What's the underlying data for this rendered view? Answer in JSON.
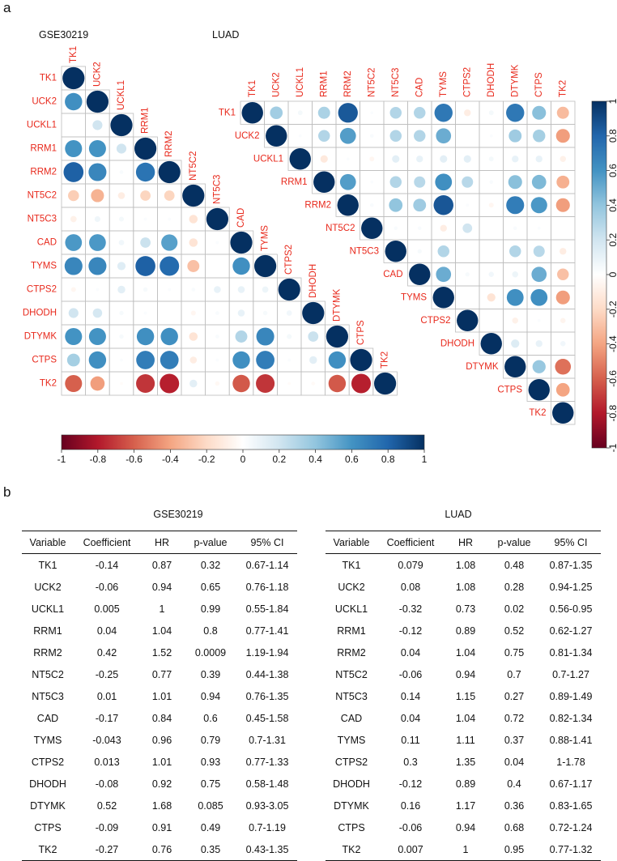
{
  "panel_labels": {
    "a": "a",
    "b": "b"
  },
  "colors": {
    "label_red": "#e8291c",
    "cell_border": "#bdbdbd",
    "negative": "#67001f",
    "zero": "#ffffff",
    "positive": "#053061"
  },
  "chart_data": [
    {
      "type": "heatmap",
      "title": "GSE30219",
      "genes": [
        "TK1",
        "UCK2",
        "UCKL1",
        "RRM1",
        "RRM2",
        "NT5C2",
        "NT5C3",
        "CAD",
        "TYMS",
        "CTPS2",
        "DHODH",
        "DTYMK",
        "CTPS",
        "TK2"
      ],
      "lower_triangle": [
        [
          1
        ],
        [
          0.62,
          1
        ],
        [
          0.0,
          0.2,
          1
        ],
        [
          0.6,
          0.6,
          0.2,
          1
        ],
        [
          0.82,
          0.66,
          0.03,
          0.74,
          1
        ],
        [
          -0.25,
          -0.35,
          -0.1,
          -0.22,
          -0.22,
          1
        ],
        [
          -0.08,
          0.07,
          0.05,
          0.02,
          0.02,
          -0.15,
          1
        ],
        [
          0.58,
          0.58,
          0.06,
          0.22,
          0.55,
          -0.15,
          0.02,
          1
        ],
        [
          0.66,
          0.66,
          0.14,
          0.82,
          0.78,
          -0.3,
          0.0,
          0.62,
          1
        ],
        [
          -0.05,
          0.02,
          0.12,
          0.04,
          0.02,
          0.03,
          0.1,
          0.1,
          0.08,
          1
        ],
        [
          0.2,
          0.18,
          0.04,
          0.02,
          0.0,
          -0.05,
          0.03,
          0.1,
          0.04,
          0.06,
          1
        ],
        [
          0.6,
          0.6,
          0.04,
          0.62,
          0.62,
          -0.15,
          0.03,
          0.3,
          0.66,
          0.05,
          0.22,
          1
        ],
        [
          0.34,
          0.62,
          0.02,
          0.7,
          0.7,
          -0.1,
          0.02,
          0.62,
          0.7,
          0.02,
          0.12,
          0.62,
          1
        ],
        [
          -0.6,
          -0.42,
          -0.02,
          -0.72,
          -0.78,
          0.12,
          -0.04,
          -0.62,
          -0.72,
          -0.02,
          -0.03,
          -0.62,
          -0.78,
          1
        ]
      ],
      "color_range": [
        -1,
        1
      ],
      "legend_ticks": [
        "-1",
        "-0.8",
        "-0.6",
        "-0.4",
        "-0.2",
        "0",
        "0.2",
        "0.4",
        "0.6",
        "0.8",
        "1"
      ],
      "legend_orientation": "horizontal"
    },
    {
      "type": "heatmap",
      "title": "LUAD",
      "genes": [
        "TK1",
        "UCK2",
        "UCKL1",
        "RRM1",
        "RRM2",
        "NT5C2",
        "NT5C3",
        "CAD",
        "TYMS",
        "CTPS2",
        "DHODH",
        "DTYMK",
        "CTPS",
        "TK2"
      ],
      "upper_triangle": [
        [
          1,
          0.35,
          0.05,
          0.32,
          0.85,
          0.02,
          0.3,
          0.3,
          0.72,
          -0.1,
          0.05,
          0.72,
          0.42,
          -0.32
        ],
        [
          1,
          0.02,
          0.3,
          0.56,
          0.03,
          0.3,
          0.3,
          0.5,
          0.0,
          0.02,
          0.36,
          0.34,
          -0.42
        ],
        [
          1,
          -0.12,
          0.02,
          -0.05,
          0.12,
          0.1,
          0.12,
          0.12,
          0.05,
          0.1,
          0.1,
          -0.08
        ],
        [
          1,
          0.56,
          0.02,
          0.3,
          0.28,
          0.62,
          0.28,
          0.03,
          0.42,
          0.45,
          -0.36
        ],
        [
          1,
          0.03,
          0.4,
          0.36,
          0.86,
          0.02,
          -0.05,
          0.7,
          0.58,
          -0.42
        ],
        [
          1,
          0.03,
          0.03,
          -0.1,
          0.2,
          0.0,
          0.03,
          0.02,
          0.0
        ],
        [
          1,
          0.04,
          0.3,
          0.0,
          0.0,
          0.3,
          0.28,
          -0.1
        ],
        [
          1,
          0.5,
          0.04,
          0.06,
          0.08,
          0.5,
          -0.3
        ],
        [
          1,
          0.0,
          -0.15,
          0.62,
          0.62,
          -0.42
        ],
        [
          1,
          0.0,
          -0.08,
          0.02,
          -0.06
        ],
        [
          1,
          0.15,
          0.1,
          0.06
        ],
        [
          1,
          0.38,
          -0.55
        ],
        [
          1,
          -0.4
        ],
        [
          1
        ]
      ],
      "color_range": [
        -1,
        1
      ],
      "legend_ticks": [
        "1",
        "0.8",
        "0.6",
        "0.4",
        "0.2",
        "0",
        "-0.2",
        "-0.4",
        "-0.6",
        "-0.8",
        "-1"
      ],
      "legend_orientation": "vertical"
    }
  ],
  "tables": {
    "gse": {
      "title": "GSE30219",
      "headers": [
        "Variable",
        "Coefficient",
        "HR",
        "p-value",
        "95% CI"
      ],
      "rows": [
        [
          "TK1",
          "-0.14",
          "0.87",
          "0.32",
          "0.67-1.14"
        ],
        [
          "UCK2",
          "-0.06",
          "0.94",
          "0.65",
          "0.76-1.18"
        ],
        [
          "UCKL1",
          "0.005",
          "1",
          "0.99",
          "0.55-1.84"
        ],
        [
          "RRM1",
          "0.04",
          "1.04",
          "0.8",
          "0.77-1.41"
        ],
        [
          "RRM2",
          "0.42",
          "1.52",
          "0.0009",
          "1.19-1.94"
        ],
        [
          "NT5C2",
          "-0.25",
          "0.77",
          "0.39",
          "0.44-1.38"
        ],
        [
          "NT5C3",
          "0.01",
          "1.01",
          "0.94",
          "0.76-1.35"
        ],
        [
          "CAD",
          "-0.17",
          "0.84",
          "0.6",
          "0.45-1.58"
        ],
        [
          "TYMS",
          "-0.043",
          "0.96",
          "0.79",
          "0.7-1.31"
        ],
        [
          "CTPS2",
          "0.013",
          "1.01",
          "0.93",
          "0.77-1.33"
        ],
        [
          "DHODH",
          "-0.08",
          "0.92",
          "0.75",
          "0.58-1.48"
        ],
        [
          "DTYMK",
          "0.52",
          "1.68",
          "0.085",
          "0.93-3.05"
        ],
        [
          "CTPS",
          "-0.09",
          "0.91",
          "0.49",
          "0.7-1.19"
        ],
        [
          "TK2",
          "-0.27",
          "0.76",
          "0.35",
          "0.43-1.35"
        ]
      ]
    },
    "luad": {
      "title": "LUAD",
      "headers": [
        "Variable",
        "Coefficient",
        "HR",
        "p-value",
        "95% CI"
      ],
      "rows": [
        [
          "TK1",
          "0.079",
          "1.08",
          "0.48",
          "0.87-1.35"
        ],
        [
          "UCK2",
          "0.08",
          "1.08",
          "0.28",
          "0.94-1.25"
        ],
        [
          "UCKL1",
          "-0.32",
          "0.73",
          "0.02",
          "0.56-0.95"
        ],
        [
          "RRM1",
          "-0.12",
          "0.89",
          "0.52",
          "0.62-1.27"
        ],
        [
          "RRM2",
          "0.04",
          "1.04",
          "0.75",
          "0.81-1.34"
        ],
        [
          "NT5C2",
          "-0.06",
          "0.94",
          "0.7",
          "0.7-1.27"
        ],
        [
          "NT5C3",
          "0.14",
          "1.15",
          "0.27",
          "0.89-1.49"
        ],
        [
          "CAD",
          "0.04",
          "1.04",
          "0.72",
          "0.82-1.34"
        ],
        [
          "TYMS",
          "0.11",
          "1.11",
          "0.37",
          "0.88-1.41"
        ],
        [
          "CTPS2",
          "0.3",
          "1.35",
          "0.04",
          "1-1.78"
        ],
        [
          "DHODH",
          "-0.12",
          "0.89",
          "0.4",
          "0.67-1.17"
        ],
        [
          "DTYMK",
          "0.16",
          "1.17",
          "0.36",
          "0.83-1.65"
        ],
        [
          "CTPS",
          "-0.06",
          "0.94",
          "0.68",
          "0.72-1.24"
        ],
        [
          "TK2",
          "0.007",
          "1",
          "0.95",
          "0.77-1.32"
        ]
      ]
    }
  }
}
